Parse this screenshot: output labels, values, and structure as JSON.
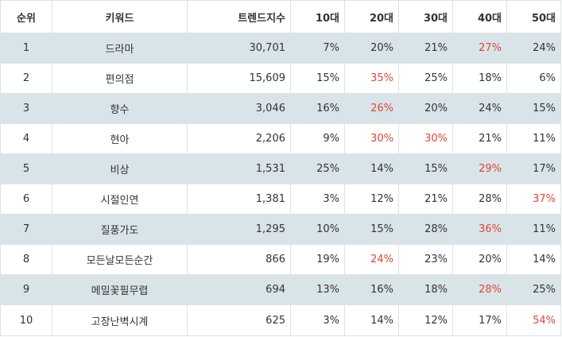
{
  "columns": [
    "순위",
    "키워드",
    "트렌드지수",
    "10대",
    "20대",
    "30대",
    "40대",
    "50대"
  ],
  "highlight_color": "#e0443c",
  "rows": [
    {
      "rank": "1",
      "keyword": "드라마",
      "index": "30,701",
      "ages": [
        "7%",
        "20%",
        "21%",
        "27%",
        "24%"
      ],
      "max_age": [
        3
      ]
    },
    {
      "rank": "2",
      "keyword": "편의점",
      "index": "15,609",
      "ages": [
        "15%",
        "35%",
        "25%",
        "18%",
        "6%"
      ],
      "max_age": [
        1
      ]
    },
    {
      "rank": "3",
      "keyword": "향수",
      "index": "3,046",
      "ages": [
        "16%",
        "26%",
        "20%",
        "24%",
        "15%"
      ],
      "max_age": [
        1
      ]
    },
    {
      "rank": "4",
      "keyword": "현아",
      "index": "2,206",
      "ages": [
        "9%",
        "30%",
        "30%",
        "21%",
        "11%"
      ],
      "max_age": [
        1,
        2
      ]
    },
    {
      "rank": "5",
      "keyword": "비상",
      "index": "1,531",
      "ages": [
        "25%",
        "14%",
        "15%",
        "29%",
        "17%"
      ],
      "max_age": [
        3
      ]
    },
    {
      "rank": "6",
      "keyword": "시절인연",
      "index": "1,381",
      "ages": [
        "3%",
        "12%",
        "21%",
        "28%",
        "37%"
      ],
      "max_age": [
        4
      ]
    },
    {
      "rank": "7",
      "keyword": "질풍가도",
      "index": "1,295",
      "ages": [
        "10%",
        "15%",
        "28%",
        "36%",
        "11%"
      ],
      "max_age": [
        3
      ]
    },
    {
      "rank": "8",
      "keyword": "모든날모든순간",
      "index": "866",
      "ages": [
        "19%",
        "24%",
        "23%",
        "20%",
        "14%"
      ],
      "max_age": [
        1
      ]
    },
    {
      "rank": "9",
      "keyword": "메밀꽃필무렵",
      "index": "694",
      "ages": [
        "13%",
        "16%",
        "18%",
        "28%",
        "25%"
      ],
      "max_age": [
        3
      ]
    },
    {
      "rank": "10",
      "keyword": "고장난벽시계",
      "index": "625",
      "ages": [
        "3%",
        "14%",
        "12%",
        "17%",
        "54%"
      ],
      "max_age": [
        4
      ]
    }
  ]
}
